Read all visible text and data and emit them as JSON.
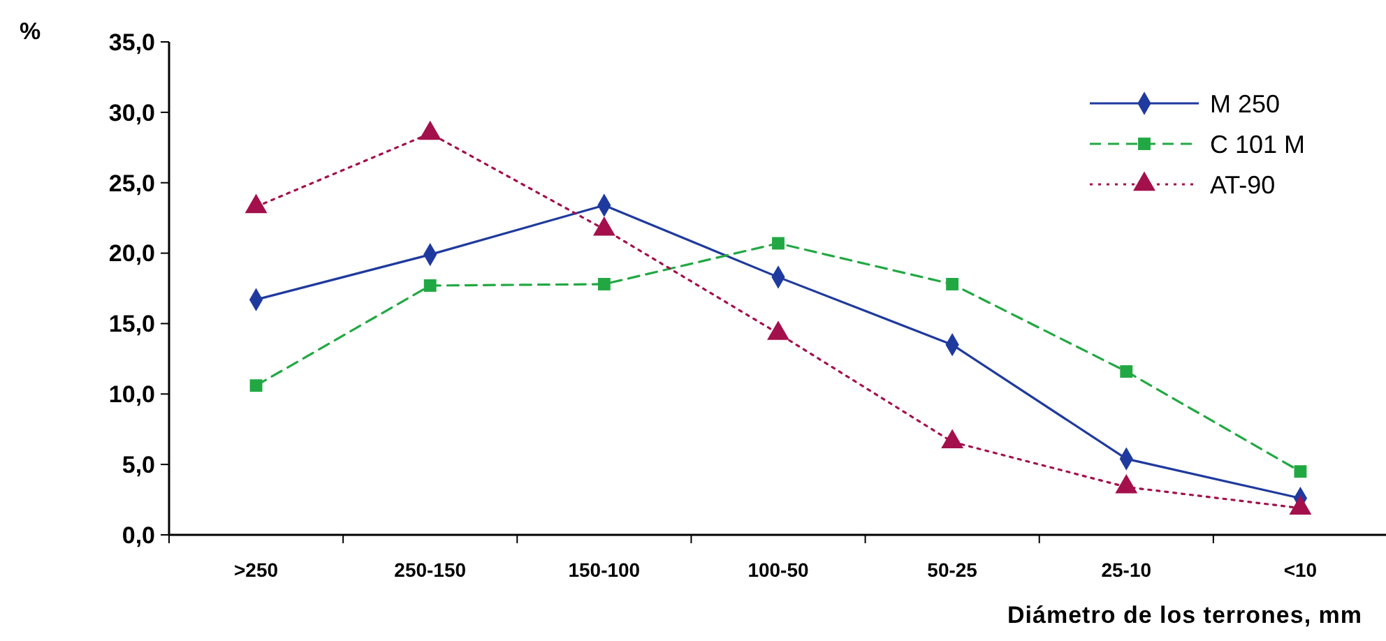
{
  "chart_data": {
    "type": "line",
    "ylabel": "%",
    "xlabel": "Diámetro de los terrones, mm",
    "categories": [
      ">250",
      "250-150",
      "150-100",
      "100-50",
      "50-25",
      "25-10",
      "<10"
    ],
    "ylim": [
      0,
      35
    ],
    "yticks": [
      {
        "value": 0,
        "label": "0,0"
      },
      {
        "value": 5,
        "label": "5,0"
      },
      {
        "value": 10,
        "label": "10,0"
      },
      {
        "value": 15,
        "label": "15,0"
      },
      {
        "value": 20,
        "label": "20,0"
      },
      {
        "value": 25,
        "label": "25,0"
      },
      {
        "value": 30,
        "label": "30,0"
      },
      {
        "value": 35,
        "label": "35,0"
      }
    ],
    "grid": false,
    "legend": "top right",
    "series": [
      {
        "name": "M 250",
        "color": "#1f3a9e",
        "marker": "diamond",
        "line_style": "solid",
        "values": [
          16.7,
          19.9,
          23.4,
          18.3,
          13.5,
          5.4,
          2.6
        ]
      },
      {
        "name": "C 101 M",
        "color": "#22a843",
        "marker": "square",
        "line_style": "dashed",
        "values": [
          10.6,
          17.7,
          17.8,
          20.7,
          17.8,
          11.6,
          4.5
        ]
      },
      {
        "name": "AT-90",
        "color": "#a3104c",
        "marker": "triangle",
        "line_style": "dotted",
        "values": [
          23.3,
          28.5,
          21.7,
          14.3,
          6.6,
          3.4,
          1.9
        ]
      }
    ]
  }
}
